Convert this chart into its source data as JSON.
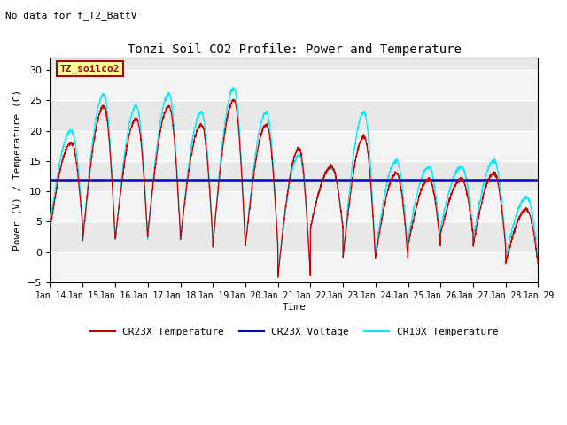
{
  "title": "Tonzi Soil CO2 Profile: Power and Temperature",
  "subtitle": "No data for f_T2_BattV",
  "ylabel": "Power (V) / Temperature (C)",
  "xlabel": "Time",
  "ylim": [
    -5,
    32
  ],
  "yticks": [
    -5,
    0,
    5,
    10,
    15,
    20,
    25,
    30
  ],
  "xtick_labels": [
    "Jan 14",
    "Jan 15",
    "Jan 16",
    "Jan 17",
    "Jan 18",
    "Jan 19",
    "Jan 20",
    "Jan 21",
    "Jan 22",
    "Jan 23",
    "Jan 24",
    "Jan 25",
    "Jan 26",
    "Jan 27",
    "Jan 28",
    "Jan 29"
  ],
  "voltage_level": 11.9,
  "cr23x_color": "#cc0000",
  "cr10x_color": "#00eeff",
  "voltage_color": "#0000cc",
  "bg_color": "#e8e8e8",
  "legend_box_color": "#ffff99",
  "legend_box_edge": "#aa0000",
  "legend_label": "TZ_soilco2",
  "font_family": "monospace"
}
